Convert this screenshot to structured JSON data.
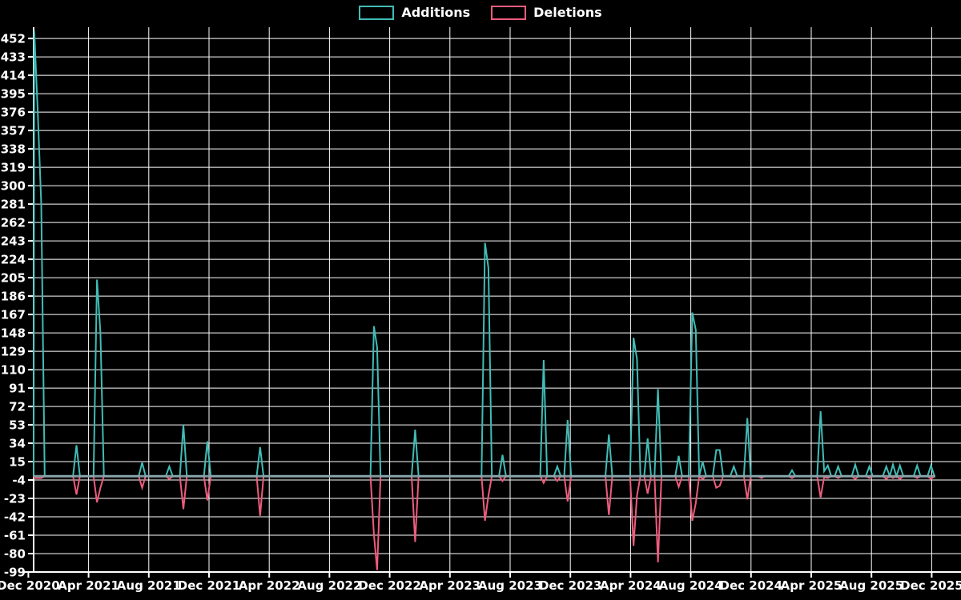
{
  "chart_data": {
    "type": "line",
    "title": "",
    "description": "Weekly additions/deletions code-frequency chart; weeks not listed have value 0 for both series",
    "legend_position": "top-center",
    "grid": true,
    "background": "#000000",
    "grid_color": "#ffffff",
    "text_color": "#ffffff",
    "zero_line_color": "#8fa5ad",
    "legend": [
      {
        "name": "Additions",
        "color": "#40bcb6"
      },
      {
        "name": "Deletions",
        "color": "#ef5c7d"
      }
    ],
    "x_axis": {
      "start": "Dec 2020",
      "end": "Dec 2025",
      "tick_interval": "4 months",
      "tick_labels": [
        "Dec 2020",
        "Apr 2021",
        "Aug 2021",
        "Dec 2021",
        "Apr 2022",
        "Aug 2022",
        "Dec 2022",
        "Apr 2023",
        "Aug 2023",
        "Dec 2023",
        "Apr 2024",
        "Aug 2024",
        "Dec 2024",
        "Apr 2025",
        "Aug 2025",
        "Dec 2025"
      ]
    },
    "y_axis": {
      "min": -99,
      "max": 452,
      "step": 19,
      "tick_labels": [
        452,
        433,
        414,
        395,
        376,
        357,
        338,
        319,
        300,
        281,
        262,
        243,
        224,
        205,
        186,
        167,
        148,
        129,
        110,
        91,
        72,
        53,
        34,
        15,
        -4,
        -23,
        -42,
        -61,
        -80,
        -99
      ]
    },
    "series_unit": "weekly",
    "weekly_nonzero_points": [
      [
        "2020-12-13",
        460,
        -2
      ],
      [
        "2020-12-20",
        377,
        -2
      ],
      [
        "2020-12-27",
        281,
        -2
      ],
      [
        "2021-03-07",
        32,
        -19
      ],
      [
        "2021-04-18",
        203,
        -27
      ],
      [
        "2021-04-25",
        148,
        -12
      ],
      [
        "2021-07-18",
        14,
        -12
      ],
      [
        "2021-09-12",
        10,
        -3
      ],
      [
        "2021-10-10",
        53,
        -34
      ],
      [
        "2021-11-28",
        36,
        -25
      ],
      [
        "2022-03-13",
        30,
        -41
      ],
      [
        "2022-10-30",
        155,
        -60
      ],
      [
        "2022-11-06",
        133,
        -97
      ],
      [
        "2023-01-22",
        48,
        -68
      ],
      [
        "2023-06-11",
        241,
        -46
      ],
      [
        "2023-06-18",
        215,
        -20
      ],
      [
        "2023-07-16",
        22,
        -5
      ],
      [
        "2023-10-08",
        120,
        -7
      ],
      [
        "2023-11-05",
        10,
        -5
      ],
      [
        "2023-11-26",
        58,
        -26
      ],
      [
        "2024-02-18",
        43,
        -40
      ],
      [
        "2024-04-07",
        143,
        -72
      ],
      [
        "2024-04-14",
        121,
        -20
      ],
      [
        "2024-05-05",
        39,
        -18
      ],
      [
        "2024-05-26",
        90,
        -89
      ],
      [
        "2024-07-07",
        21,
        -11
      ],
      [
        "2024-08-04",
        169,
        -46
      ],
      [
        "2024-08-11",
        151,
        -28
      ],
      [
        "2024-08-25",
        15,
        -3
      ],
      [
        "2024-09-22",
        27,
        -12
      ],
      [
        "2024-09-29",
        27,
        -10
      ],
      [
        "2024-10-27",
        10,
        -1
      ],
      [
        "2024-11-24",
        60,
        -24
      ],
      [
        "2024-12-22",
        0,
        -2
      ],
      [
        "2025-02-23",
        6,
        -2
      ],
      [
        "2025-04-20",
        67,
        -22
      ],
      [
        "2025-04-27",
        5,
        -1
      ],
      [
        "2025-05-04",
        11,
        -2
      ],
      [
        "2025-05-25",
        10,
        -2
      ],
      [
        "2025-06-29",
        12,
        -3
      ],
      [
        "2025-07-27",
        10,
        -2
      ],
      [
        "2025-08-31",
        10,
        -3
      ],
      [
        "2025-09-14",
        12,
        -2
      ],
      [
        "2025-09-28",
        11,
        -3
      ],
      [
        "2025-11-02",
        11,
        -2
      ],
      [
        "2025-11-30",
        11,
        -3
      ]
    ]
  }
}
